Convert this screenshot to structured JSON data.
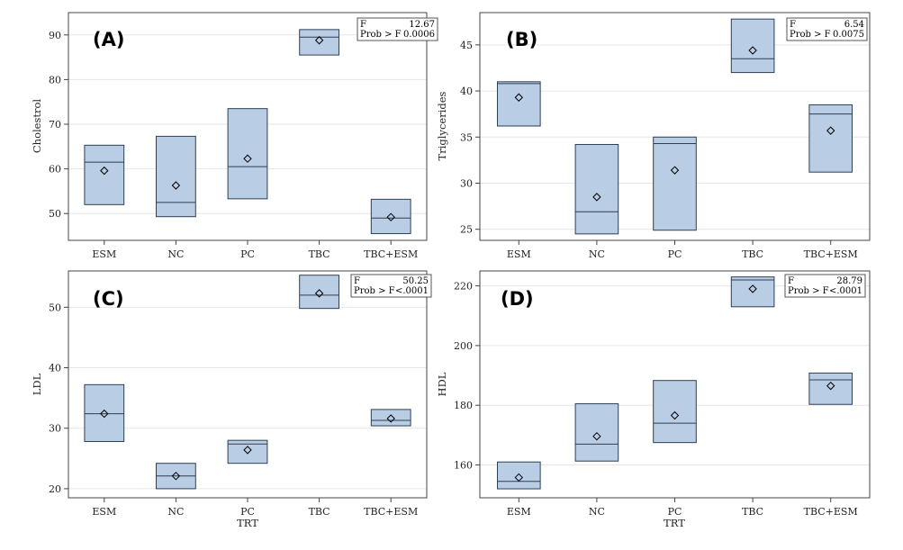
{
  "categories": [
    "ESM",
    "NC",
    "PC",
    "TBC",
    "TBC+ESM"
  ],
  "colors": {
    "box_fill": "#b9cde5",
    "box_stroke": "#2f3f52",
    "grid": "#e6e6e6",
    "axis": "#444444"
  },
  "chart_data": [
    {
      "type": "box",
      "panel_label": "(A)",
      "ylabel": "Cholestrol",
      "xlabel": "",
      "ylim": [
        44,
        95
      ],
      "yticks": [
        50,
        60,
        70,
        80,
        90
      ],
      "grid": true,
      "stats": {
        "f_label": "F",
        "f_value": "12.67",
        "p_label": "Prob > F",
        "p_value": "0.0006"
      },
      "boxes": [
        {
          "category": "ESM",
          "q1": 52,
          "median": 61.5,
          "q3": 65.3,
          "mean": 59.6
        },
        {
          "category": "NC",
          "q1": 49.3,
          "median": 52.5,
          "q3": 67.3,
          "mean": 56.3
        },
        {
          "category": "PC",
          "q1": 53.3,
          "median": 60.5,
          "q3": 73.5,
          "mean": 62.3
        },
        {
          "category": "TBC",
          "q1": 85.5,
          "median": 89.5,
          "q3": 91.2,
          "mean": 88.8
        },
        {
          "category": "TBC+ESM",
          "q1": 45.5,
          "median": 49,
          "q3": 53.2,
          "mean": 49.2
        }
      ]
    },
    {
      "type": "box",
      "panel_label": "(B)",
      "ylabel": "Triglycerides",
      "xlabel": "",
      "ylim": [
        23.8,
        48.5
      ],
      "yticks": [
        25,
        30,
        35,
        40,
        45
      ],
      "grid": true,
      "stats": {
        "f_label": "F",
        "f_value": "6.54",
        "p_label": "Prob > F",
        "p_value": "0.0075"
      },
      "boxes": [
        {
          "category": "ESM",
          "q1": 36.2,
          "median": 40.8,
          "q3": 41,
          "mean": 39.3
        },
        {
          "category": "NC",
          "q1": 24.5,
          "median": 26.9,
          "q3": 34.2,
          "mean": 28.5
        },
        {
          "category": "PC",
          "q1": 24.9,
          "median": 34.3,
          "q3": 35,
          "mean": 31.4
        },
        {
          "category": "TBC",
          "q1": 42,
          "median": 43.5,
          "q3": 47.8,
          "mean": 44.4
        },
        {
          "category": "TBC+ESM",
          "q1": 31.2,
          "median": 37.5,
          "q3": 38.5,
          "mean": 35.7
        }
      ]
    },
    {
      "type": "box",
      "panel_label": "(C)",
      "ylabel": "LDL",
      "xlabel": "TRT",
      "ylim": [
        18.5,
        56
      ],
      "yticks": [
        20,
        30,
        40,
        50
      ],
      "grid": true,
      "stats": {
        "f_label": "F",
        "f_value": "50.25",
        "p_label": "Prob > F",
        "p_value": "<.0001"
      },
      "boxes": [
        {
          "category": "ESM",
          "q1": 27.8,
          "median": 32.4,
          "q3": 37.2,
          "mean": 32.4
        },
        {
          "category": "NC",
          "q1": 20,
          "median": 22.1,
          "q3": 24.2,
          "mean": 22.1
        },
        {
          "category": "PC",
          "q1": 24.2,
          "median": 27.4,
          "q3": 28,
          "mean": 26.4
        },
        {
          "category": "TBC",
          "q1": 49.8,
          "median": 52,
          "q3": 55.3,
          "mean": 52.3
        },
        {
          "category": "TBC+ESM",
          "q1": 30.4,
          "median": 31.3,
          "q3": 33.1,
          "mean": 31.6
        }
      ]
    },
    {
      "type": "box",
      "panel_label": "(D)",
      "ylabel": "HDL",
      "xlabel": "TRT",
      "ylim": [
        149,
        225
      ],
      "yticks": [
        160,
        180,
        200,
        220
      ],
      "grid": true,
      "stats": {
        "f_label": "F",
        "f_value": "28.79",
        "p_label": "Prob > F",
        "p_value": "<.0001"
      },
      "boxes": [
        {
          "category": "ESM",
          "q1": 152,
          "median": 154.5,
          "q3": 161,
          "mean": 155.8
        },
        {
          "category": "NC",
          "q1": 161.3,
          "median": 167,
          "q3": 180.5,
          "mean": 169.6
        },
        {
          "category": "PC",
          "q1": 167.5,
          "median": 174,
          "q3": 188.3,
          "mean": 176.6
        },
        {
          "category": "TBC",
          "q1": 213,
          "median": 222,
          "q3": 223,
          "mean": 219
        },
        {
          "category": "TBC+ESM",
          "q1": 180.3,
          "median": 188.5,
          "q3": 190.8,
          "mean": 186.5
        }
      ]
    }
  ]
}
